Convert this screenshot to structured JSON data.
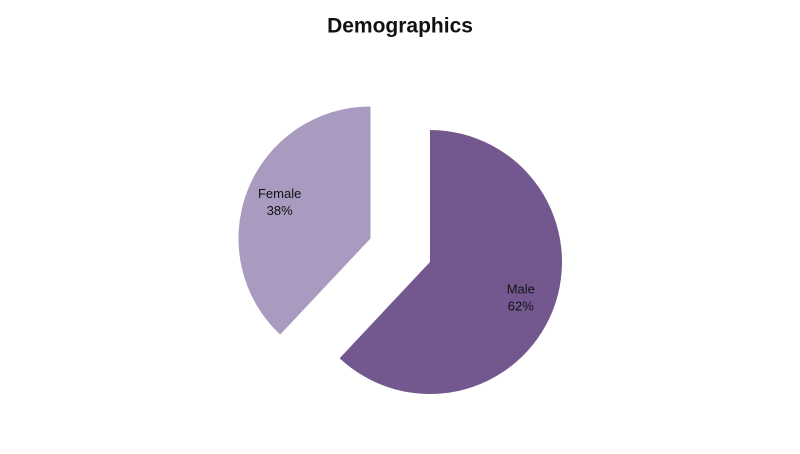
{
  "chart_data": {
    "type": "pie",
    "title": "Demographics",
    "categories": [
      "Male",
      "Female"
    ],
    "values": [
      62,
      38
    ],
    "value_labels": [
      "62%",
      "38%"
    ],
    "colors": [
      "#72588e",
      "#a99bbf"
    ],
    "exploded": "Female"
  }
}
